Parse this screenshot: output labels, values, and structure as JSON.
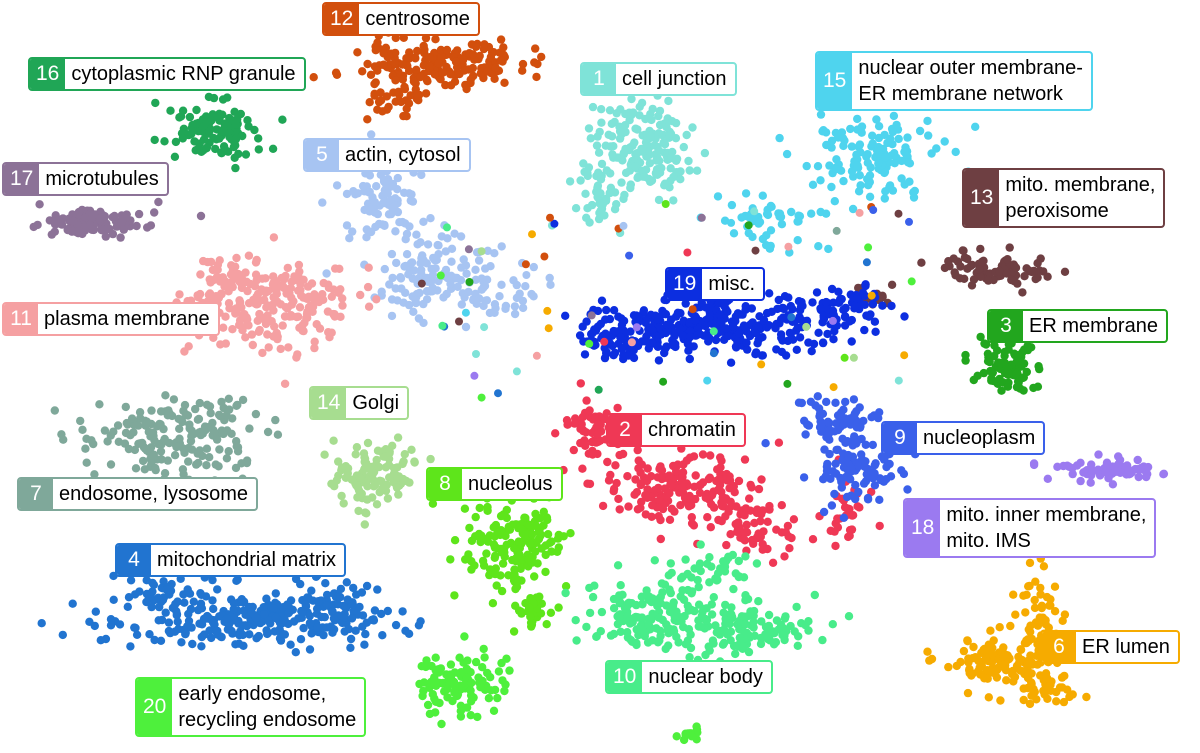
{
  "clusters": [
    {
      "id": "1",
      "lines": [
        "cell junction"
      ],
      "color": "#7fe3d8"
    },
    {
      "id": "2",
      "lines": [
        "chromatin"
      ],
      "color": "#ef3855"
    },
    {
      "id": "3",
      "lines": [
        "ER membrane"
      ],
      "color": "#22a61e"
    },
    {
      "id": "4",
      "lines": [
        "mitochondrial matrix"
      ],
      "color": "#2174d0"
    },
    {
      "id": "5",
      "lines": [
        "actin, cytosol"
      ],
      "color": "#a7c4f2"
    },
    {
      "id": "6",
      "lines": [
        "ER lumen"
      ],
      "color": "#f6ab00"
    },
    {
      "id": "7",
      "lines": [
        "endosome, lysosome"
      ],
      "color": "#7fa89a"
    },
    {
      "id": "8",
      "lines": [
        "nucleolus"
      ],
      "color": "#5ee51b"
    },
    {
      "id": "9",
      "lines": [
        "nucleoplasm"
      ],
      "color": "#3a60ea"
    },
    {
      "id": "10",
      "lines": [
        "nuclear body"
      ],
      "color": "#48ec8a"
    },
    {
      "id": "11",
      "lines": [
        "plasma membrane"
      ],
      "color": "#f5a0a2"
    },
    {
      "id": "12",
      "lines": [
        "centrosome"
      ],
      "color": "#d24f0d"
    },
    {
      "id": "13",
      "lines": [
        "mito. membrane,",
        "peroxisome"
      ],
      "color": "#6e3f42"
    },
    {
      "id": "14",
      "lines": [
        "Golgi"
      ],
      "color": "#a7dd90"
    },
    {
      "id": "15",
      "lines": [
        "nuclear outer membrane-",
        "ER membrane network"
      ],
      "color": "#4fd4ee"
    },
    {
      "id": "16",
      "lines": [
        "cytoplasmic RNP granule"
      ],
      "color": "#20a656"
    },
    {
      "id": "17",
      "lines": [
        "microtubules"
      ],
      "color": "#8c7297"
    },
    {
      "id": "18",
      "lines": [
        "mito. inner membrane,",
        "mito. IMS"
      ],
      "color": "#9b7af0"
    },
    {
      "id": "19",
      "lines": [
        "misc."
      ],
      "color": "#0c2ee0"
    },
    {
      "id": "20",
      "lines": [
        "early endosome,",
        "recycling endosome"
      ],
      "color": "#4ef03c"
    }
  ]
}
